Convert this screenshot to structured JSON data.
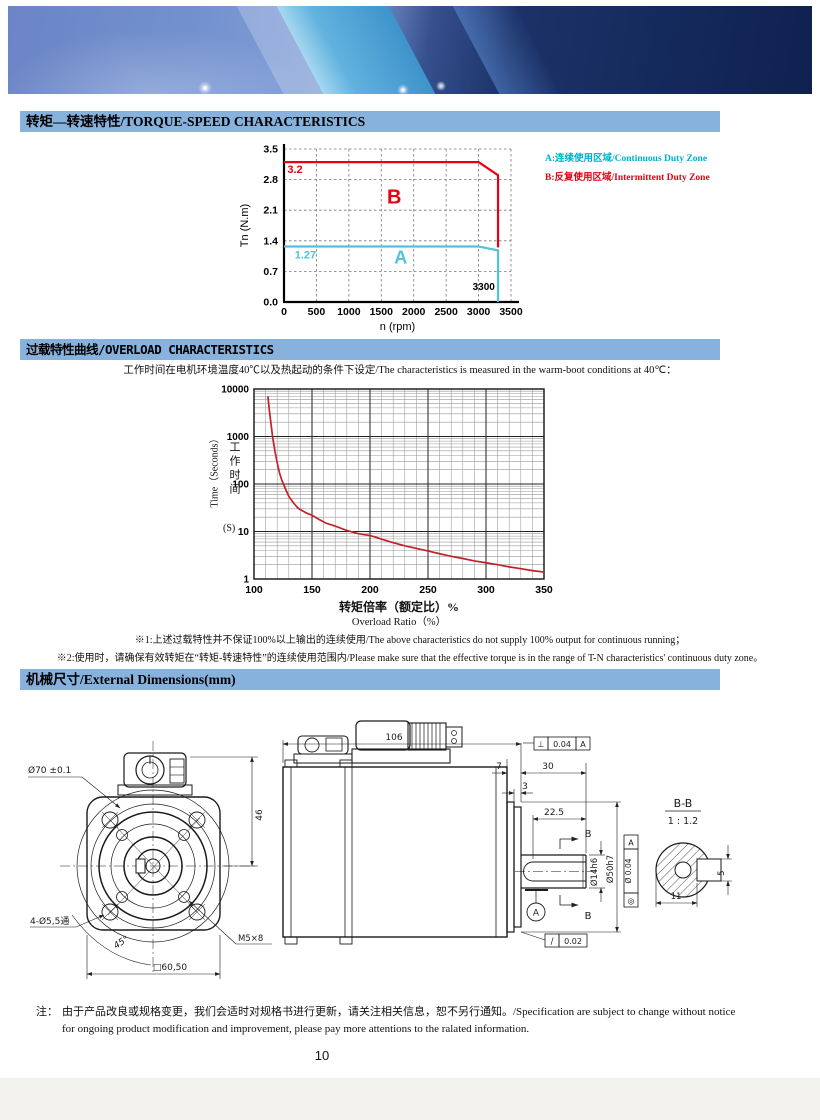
{
  "sections": {
    "torque": {
      "title": "转矩—转速特性/TORQUE-SPEED CHARACTERISTICS",
      "legend": [
        {
          "key": "A",
          "label": "A:连续使用区域/Continuous Duty Zone",
          "color": "#00b0c8"
        },
        {
          "key": "B",
          "label": "B:反复使用区域/Intermittent Duty Zone",
          "color": "#e60012"
        }
      ]
    },
    "overload": {
      "title": "过载特性曲线/OVERLOAD CHARACTERISTICS",
      "subtitle": "工作时间在电机环境温度40℃以及热起动的条件下设定/The characteristics is measured in the warm-boot conditions at 40℃：",
      "xlabel_zh": "转矩倍率（额定比）%",
      "xlabel_en": "Overload Ratio（%）",
      "ylabel_en": "Time（Seconds）",
      "ylabel_zh": "工作时间",
      "ylabel_unit": "(S)",
      "notes": [
        "※1:上述过载特性并不保证100%以上输出的连续使用/The above characteristics do not supply 100% output for continuous running；",
        "※2:使用时，请确保有效转矩在“转矩-转速特性”的连续使用范围内/Please make sure that the effective torque is in the range of T-N characteristics' continuous duty zone。"
      ]
    },
    "dimensions": {
      "title": "机械尺寸/External Dimensions(mm)",
      "front_view": {
        "pilot_dia": "Ø70 ±0.1",
        "height_to_center": "46",
        "mount_holes": "4-Ø5,5通",
        "hole_angle": "45°",
        "tap": "M5×8",
        "square": "□60,50"
      },
      "side_view": {
        "total_length": "106",
        "dim_7": "7",
        "dim_3": "3",
        "shaft_length": "30",
        "key_length": "22.5",
        "section_mark_top": "B",
        "section_mark_bottom": "B",
        "shaft_dia": "Ø14h6",
        "pilot_dia": "Ø50h7",
        "perp_symbol": "⊥",
        "perp_tol": "0.04",
        "perp_datum": "A",
        "datum_label": "A",
        "conc_symbol": "◎",
        "conc_tol": "Ø 0.04",
        "conc_datum": "A",
        "runout_symbol": "/",
        "runout_tol": "0.02"
      },
      "section_view": {
        "title": "B-B",
        "scale": "1 : 1.2",
        "key_width": "5",
        "key_depth": "11"
      }
    }
  },
  "footer": {
    "note_label": "注：",
    "note_line1": "由于产品改良或规格变更，我们会适时对规格书进行更新，请关注相关信息，恕不另行通知。/Specification are subject to change without notice",
    "note_line2": "for ongoing product modification and improvement, please pay more attentions to the ralated information.",
    "page_number": "10"
  },
  "chart_data": [
    {
      "type": "line",
      "title": "Torque-Speed Characteristics",
      "xlabel": "n (rpm)",
      "ylabel": "Tn (N.m)",
      "xlim": [
        0,
        3500
      ],
      "ylim": [
        0,
        3.5
      ],
      "xticks": [
        0,
        500,
        1000,
        1500,
        2000,
        2500,
        3000,
        3500
      ],
      "yticks": [
        0.0,
        0.7,
        1.4,
        2.1,
        2.8,
        3.5
      ],
      "grid": "dashed",
      "legend_position": "right",
      "series": [
        {
          "name": "B 反复使用区域/Intermittent Duty Zone",
          "color": "#e60012",
          "points": [
            [
              0,
              3.2
            ],
            [
              3000,
              3.2
            ],
            [
              3300,
              2.9
            ],
            [
              3300,
              1.25
            ]
          ]
        },
        {
          "name": "A 连续使用区域/Continuous Duty Zone",
          "color": "#4fc3d8",
          "points": [
            [
              0,
              1.27
            ],
            [
              3000,
              1.27
            ],
            [
              3300,
              1.18
            ],
            [
              3300,
              0
            ]
          ]
        }
      ],
      "annotations": [
        {
          "text": "3.2",
          "x": 170,
          "y": 2.95,
          "color": "#e60012",
          "size": 11
        },
        {
          "text": "1.27",
          "x": 330,
          "y": 1.0,
          "color": "#4fc3d8",
          "size": 11
        },
        {
          "text": "B",
          "x": 1700,
          "y": 2.25,
          "color": "#e60012",
          "size": 20
        },
        {
          "text": "A",
          "x": 1800,
          "y": 0.88,
          "color": "#4fc3d8",
          "size": 18
        },
        {
          "text": "3300",
          "x": 3080,
          "y": 0.28,
          "color": "#000000",
          "size": 10
        }
      ]
    },
    {
      "type": "line",
      "title": "Overload Characteristics",
      "xlabel": "转矩倍率（额定比）% / Overload Ratio（%）",
      "ylabel": "工作时间 Time（Seconds）(S)",
      "xscale": "linear",
      "yscale": "log",
      "xlim": [
        100,
        350
      ],
      "ylim": [
        1,
        10000
      ],
      "xticks": [
        100,
        150,
        200,
        250,
        300,
        350
      ],
      "yticks": [
        1,
        10,
        100,
        1000,
        10000
      ],
      "grid": "log-minor",
      "series": [
        {
          "name": "overload-curve",
          "color": "#c22128",
          "points": [
            [
              112,
              7000
            ],
            [
              113,
              4000
            ],
            [
              114,
              2500
            ],
            [
              116,
              1000
            ],
            [
              118,
              500
            ],
            [
              120,
              280
            ],
            [
              122,
              170
            ],
            [
              124,
              120
            ],
            [
              127,
              80
            ],
            [
              130,
              55
            ],
            [
              134,
              40
            ],
            [
              138,
              31
            ],
            [
              142,
              27
            ],
            [
              146,
              24
            ],
            [
              150,
              22
            ],
            [
              156,
              18
            ],
            [
              162,
              15
            ],
            [
              170,
              13
            ],
            [
              180,
              10.5
            ],
            [
              190,
              9
            ],
            [
              200,
              8.2
            ],
            [
              205,
              7.6
            ],
            [
              210,
              6.9
            ],
            [
              220,
              5.8
            ],
            [
              230,
              5.0
            ],
            [
              240,
              4.4
            ],
            [
              250,
              3.9
            ],
            [
              260,
              3.4
            ],
            [
              270,
              3.0
            ],
            [
              280,
              2.7
            ],
            [
              290,
              2.4
            ],
            [
              300,
              2.2
            ],
            [
              310,
              2.0
            ],
            [
              320,
              1.8
            ],
            [
              330,
              1.65
            ],
            [
              340,
              1.5
            ],
            [
              350,
              1.4
            ]
          ]
        }
      ]
    }
  ]
}
